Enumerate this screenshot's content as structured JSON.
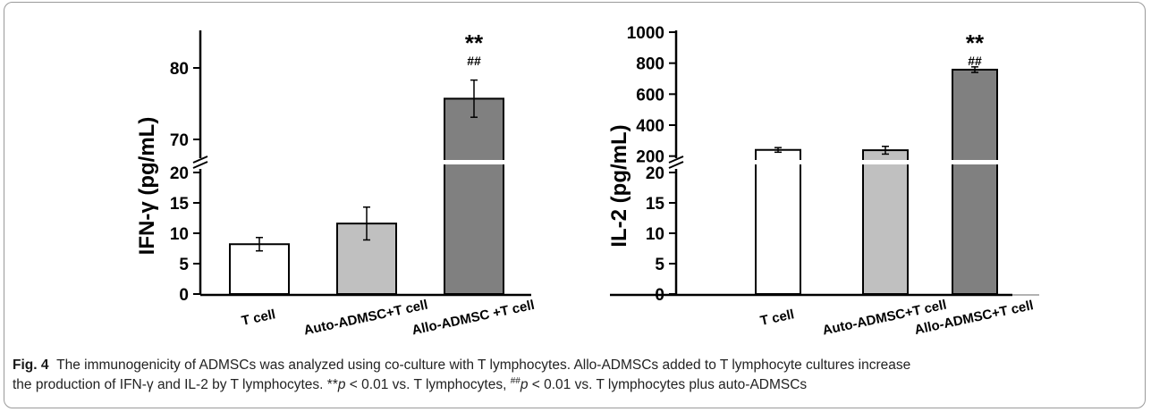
{
  "chart_data": [
    {
      "type": "bar",
      "ylabel": "IFN-γ  (pg/mL)",
      "categories": [
        "T cell",
        "Auto-ADMSC+T cell",
        "Allo-ADMSC +T cell"
      ],
      "values": [
        8.2,
        11.6,
        75.7
      ],
      "errors": [
        1.1,
        2.7,
        2.6
      ],
      "bar_colors": [
        "#ffffff",
        "#c0c0c0",
        "#808080"
      ],
      "y_axis_break": true,
      "lower_ylim": [
        0,
        20
      ],
      "lower_yticks": [
        "0",
        "5",
        "10",
        "15",
        "20"
      ],
      "upper_ylim": [
        67,
        85
      ],
      "upper_yticks": [
        "70",
        "80"
      ],
      "annotations": [
        {
          "category_index": 2,
          "significance": "**",
          "vs_auto": "##"
        }
      ]
    },
    {
      "type": "bar",
      "ylabel": "IL-2  (pg/mL)",
      "categories": [
        "T cell",
        "Auto-ADMSC+T cell",
        "Allo-ADMSC+T cell"
      ],
      "values": [
        240,
        238,
        758
      ],
      "errors": [
        15,
        25,
        18
      ],
      "bar_colors": [
        "#ffffff",
        "#c0c0c0",
        "#808080"
      ],
      "y_axis_break": true,
      "lower_ylim": [
        0,
        20
      ],
      "lower_yticks": [
        "0",
        "5",
        "10",
        "15",
        "20"
      ],
      "upper_ylim": [
        100,
        1000
      ],
      "upper_yticks": [
        "200",
        "400",
        "600",
        "800",
        "1000"
      ],
      "annotations": [
        {
          "category_index": 2,
          "significance": "**",
          "vs_auto": "##"
        }
      ]
    }
  ],
  "caption": {
    "label": "Fig. 4",
    "line1": "The immunogenicity of ADMSCs was analyzed using co-culture with T lymphocytes. Allo-ADMSCs added to T lymphocyte cultures increase",
    "line2a": "the production of IFN-γ and IL-2 by T lymphocytes. **",
    "p1": "p",
    "line2b": " < 0.01 vs. T lymphocytes, ",
    "hash_sup": "##",
    "p2": "p",
    "line2c": " < 0.01 vs. T lymphocytes plus auto-ADMSCs"
  }
}
